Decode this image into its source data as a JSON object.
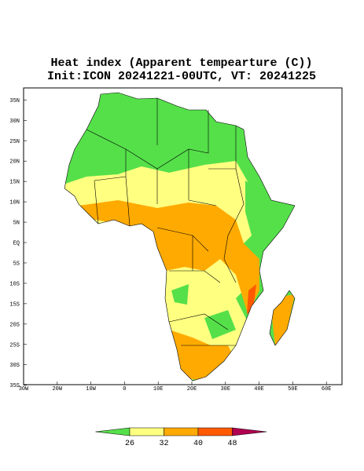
{
  "map": {
    "title": "Heat index (Apparent tempearture (C))",
    "subtitle": "Init:ICON 20241221-00UTC, VT: 20241225",
    "latticks": [
      {
        "value": 35,
        "label": "35N"
      },
      {
        "value": 30,
        "label": "30N"
      },
      {
        "value": 25,
        "label": "25N"
      },
      {
        "value": 20,
        "label": "20N"
      },
      {
        "value": 15,
        "label": "15N"
      },
      {
        "value": 10,
        "label": "10N"
      },
      {
        "value": 5,
        "label": "5N"
      },
      {
        "value": 0,
        "label": "EQ"
      },
      {
        "value": -5,
        "label": "5S"
      },
      {
        "value": -10,
        "label": "10S"
      },
      {
        "value": -15,
        "label": "15S"
      },
      {
        "value": -20,
        "label": "20S"
      },
      {
        "value": -25,
        "label": "25S"
      },
      {
        "value": -30,
        "label": "30S"
      },
      {
        "value": -35,
        "label": "35S"
      }
    ],
    "lonticks": [
      {
        "value": -30,
        "label": "30W"
      },
      {
        "value": -20,
        "label": "20W"
      },
      {
        "value": -10,
        "label": "10W"
      },
      0,
      {
        "value": 10,
        "label": "10E"
      },
      {
        "value": 20,
        "label": "20E"
      },
      {
        "value": 30,
        "label": "30E"
      },
      {
        "value": 40,
        "label": "40E"
      },
      {
        "value": 50,
        "label": "50E"
      },
      {
        "value": 60,
        "label": "60E"
      }
    ],
    "colorbar": {
      "levels": [
        26,
        32,
        40,
        48
      ],
      "colors": [
        "#55e04a",
        "#ffff80",
        "#ffaa00",
        "#ff5a00",
        "#b0004f"
      ]
    }
  }
}
